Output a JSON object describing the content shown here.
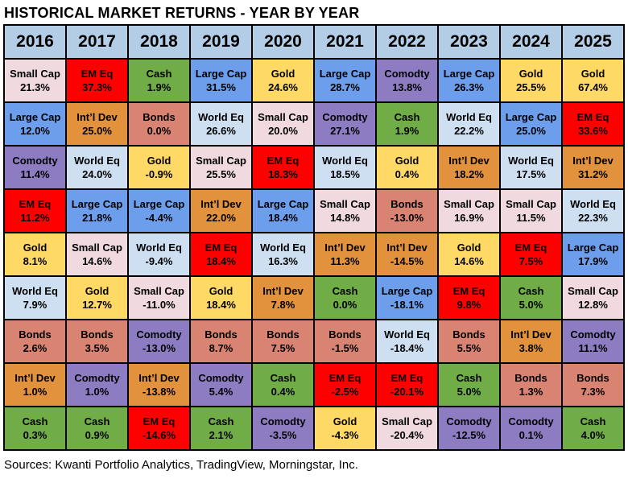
{
  "page": {
    "title": "HISTORICAL MARKET RETURNS - YEAR BY YEAR",
    "footer": "Sources: Kwanti Portfolio Analytics, TradingView, Morningstar, Inc."
  },
  "colors": {
    "header_bg": "#B3CDE6",
    "border": "#000000",
    "assets": {
      "Small Cap": "#F0DAE0",
      "EM Eq": "#FF0000",
      "Cash": "#70AD47",
      "Large Cap": "#6D9EEB",
      "Gold": "#FFD966",
      "Comodty": "#8E7CC3",
      "Int’l Dev": "#E2923C",
      "Bonds": "#D98472",
      "World Eq": "#CEDFF2"
    }
  },
  "chart_data": {
    "type": "table",
    "title": "HISTORICAL MARKET RETURNS - YEAR BY YEAR",
    "years": [
      "2016",
      "2017",
      "2018",
      "2019",
      "2020",
      "2021",
      "2022",
      "2023",
      "2024",
      "2025"
    ],
    "rows": [
      [
        {
          "asset": "Small Cap",
          "value": "21.3%"
        },
        {
          "asset": "EM Eq",
          "value": "37.3%"
        },
        {
          "asset": "Cash",
          "value": "1.9%"
        },
        {
          "asset": "Large Cap",
          "value": "31.5%"
        },
        {
          "asset": "Gold",
          "value": "24.6%"
        },
        {
          "asset": "Large Cap",
          "value": "28.7%"
        },
        {
          "asset": "Comodty",
          "value": "13.8%"
        },
        {
          "asset": "Large Cap",
          "value": "26.3%"
        },
        {
          "asset": "Gold",
          "value": "25.5%"
        },
        {
          "asset": "Gold",
          "value": "67.4%"
        }
      ],
      [
        {
          "asset": "Large Cap",
          "value": "12.0%"
        },
        {
          "asset": "Int’l Dev",
          "value": "25.0%"
        },
        {
          "asset": "Bonds",
          "value": "0.0%"
        },
        {
          "asset": "World Eq",
          "value": "26.6%"
        },
        {
          "asset": "Small Cap",
          "value": "20.0%"
        },
        {
          "asset": "Comodty",
          "value": "27.1%"
        },
        {
          "asset": "Cash",
          "value": "1.9%"
        },
        {
          "asset": "World Eq",
          "value": "22.2%"
        },
        {
          "asset": "Large Cap",
          "value": "25.0%"
        },
        {
          "asset": "EM Eq",
          "value": "33.6%"
        }
      ],
      [
        {
          "asset": "Comodty",
          "value": "11.4%"
        },
        {
          "asset": "World Eq",
          "value": "24.0%"
        },
        {
          "asset": "Gold",
          "value": "-0.9%"
        },
        {
          "asset": "Small Cap",
          "value": "25.5%"
        },
        {
          "asset": "EM Eq",
          "value": "18.3%"
        },
        {
          "asset": "World Eq",
          "value": "18.5%"
        },
        {
          "asset": "Gold",
          "value": "0.4%"
        },
        {
          "asset": "Int’l Dev",
          "value": "18.2%"
        },
        {
          "asset": "World Eq",
          "value": "17.5%"
        },
        {
          "asset": "Int’l Dev",
          "value": "31.2%"
        }
      ],
      [
        {
          "asset": "EM Eq",
          "value": "11.2%"
        },
        {
          "asset": "Large Cap",
          "value": "21.8%"
        },
        {
          "asset": "Large Cap",
          "value": "-4.4%"
        },
        {
          "asset": "Int’l Dev",
          "value": "22.0%"
        },
        {
          "asset": "Large Cap",
          "value": "18.4%"
        },
        {
          "asset": "Small Cap",
          "value": "14.8%"
        },
        {
          "asset": "Bonds",
          "value": "-13.0%"
        },
        {
          "asset": "Small Cap",
          "value": "16.9%"
        },
        {
          "asset": "Small Cap",
          "value": "11.5%"
        },
        {
          "asset": "World Eq",
          "value": "22.3%"
        }
      ],
      [
        {
          "asset": "Gold",
          "value": "8.1%"
        },
        {
          "asset": "Small Cap",
          "value": "14.6%"
        },
        {
          "asset": "World Eq",
          "value": "-9.4%"
        },
        {
          "asset": "EM Eq",
          "value": "18.4%"
        },
        {
          "asset": "World Eq",
          "value": "16.3%"
        },
        {
          "asset": "Int’l Dev",
          "value": "11.3%"
        },
        {
          "asset": "Int’l Dev",
          "value": "-14.5%"
        },
        {
          "asset": "Gold",
          "value": "14.6%"
        },
        {
          "asset": "EM Eq",
          "value": "7.5%"
        },
        {
          "asset": "Large Cap",
          "value": "17.9%"
        }
      ],
      [
        {
          "asset": "World Eq",
          "value": "7.9%"
        },
        {
          "asset": "Gold",
          "value": "12.7%"
        },
        {
          "asset": "Small Cap",
          "value": "-11.0%"
        },
        {
          "asset": "Gold",
          "value": "18.4%"
        },
        {
          "asset": "Int’l Dev",
          "value": "7.8%"
        },
        {
          "asset": "Cash",
          "value": "0.0%"
        },
        {
          "asset": "Large Cap",
          "value": "-18.1%"
        },
        {
          "asset": "EM Eq",
          "value": "9.8%"
        },
        {
          "asset": "Cash",
          "value": "5.0%"
        },
        {
          "asset": "Small Cap",
          "value": "12.8%"
        }
      ],
      [
        {
          "asset": "Bonds",
          "value": "2.6%"
        },
        {
          "asset": "Bonds",
          "value": "3.5%"
        },
        {
          "asset": "Comodty",
          "value": "-13.0%"
        },
        {
          "asset": "Bonds",
          "value": "8.7%"
        },
        {
          "asset": "Bonds",
          "value": "7.5%"
        },
        {
          "asset": "Bonds",
          "value": "-1.5%"
        },
        {
          "asset": "World Eq",
          "value": "-18.4%"
        },
        {
          "asset": "Bonds",
          "value": "5.5%"
        },
        {
          "asset": "Int’l Dev",
          "value": "3.8%"
        },
        {
          "asset": "Comodty",
          "value": "11.1%"
        }
      ],
      [
        {
          "asset": "Int’l Dev",
          "value": "1.0%"
        },
        {
          "asset": "Comodty",
          "value": "1.0%"
        },
        {
          "asset": "Int’l Dev",
          "value": "-13.8%"
        },
        {
          "asset": "Comodty",
          "value": "5.4%"
        },
        {
          "asset": "Cash",
          "value": "0.4%"
        },
        {
          "asset": "EM Eq",
          "value": "-2.5%"
        },
        {
          "asset": "EM Eq",
          "value": "-20.1%"
        },
        {
          "asset": "Cash",
          "value": "5.0%"
        },
        {
          "asset": "Bonds",
          "value": "1.3%"
        },
        {
          "asset": "Bonds",
          "value": "7.3%"
        }
      ],
      [
        {
          "asset": "Cash",
          "value": "0.3%"
        },
        {
          "asset": "Cash",
          "value": "0.9%"
        },
        {
          "asset": "EM Eq",
          "value": "-14.6%"
        },
        {
          "asset": "Cash",
          "value": "2.1%"
        },
        {
          "asset": "Comodty",
          "value": "-3.5%"
        },
        {
          "asset": "Gold",
          "value": "-4.3%"
        },
        {
          "asset": "Small Cap",
          "value": "-20.4%"
        },
        {
          "asset": "Comodty",
          "value": "-12.5%"
        },
        {
          "asset": "Comodty",
          "value": "0.1%"
        },
        {
          "asset": "Cash",
          "value": "4.0%"
        }
      ]
    ]
  }
}
